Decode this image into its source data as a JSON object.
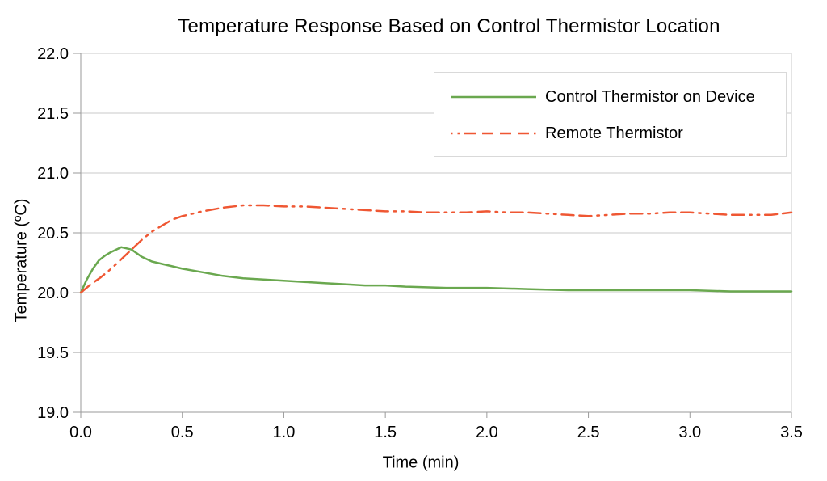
{
  "chart_data": {
    "type": "line",
    "title": "Temperature Response Based on Control Thermistor Location",
    "xlabel": "Time (min)",
    "ylabel": "Temperature (ºC)",
    "xlim": [
      0,
      3.5
    ],
    "ylim": [
      19.0,
      22.0
    ],
    "x_ticks": [
      "0.0",
      "0.5",
      "1.0",
      "1.5",
      "2.0",
      "2.5",
      "3.0",
      "3.5"
    ],
    "y_ticks": [
      "19.0",
      "19.5",
      "20.0",
      "20.5",
      "21.0",
      "21.5",
      "22.0"
    ],
    "grid": "horizontal-only",
    "legend_position": "top-right-inside",
    "colors": {
      "grid": "#c9c9c9",
      "axis": "#9a9a9a",
      "text": "#000000",
      "legend_border": "#d9d9d9",
      "background": "#ffffff"
    },
    "series": [
      {
        "name": "Control Thermistor on Device",
        "color": "#6aa84f",
        "line_style": "solid",
        "points": [
          [
            0.0,
            20.0
          ],
          [
            0.03,
            20.11
          ],
          [
            0.06,
            20.2
          ],
          [
            0.09,
            20.27
          ],
          [
            0.12,
            20.31
          ],
          [
            0.15,
            20.34
          ],
          [
            0.2,
            20.38
          ],
          [
            0.25,
            20.36
          ],
          [
            0.3,
            20.3
          ],
          [
            0.35,
            20.26
          ],
          [
            0.4,
            20.24
          ],
          [
            0.45,
            20.22
          ],
          [
            0.5,
            20.2
          ],
          [
            0.6,
            20.17
          ],
          [
            0.7,
            20.14
          ],
          [
            0.8,
            20.12
          ],
          [
            0.9,
            20.11
          ],
          [
            1.0,
            20.1
          ],
          [
            1.1,
            20.09
          ],
          [
            1.2,
            20.08
          ],
          [
            1.3,
            20.07
          ],
          [
            1.4,
            20.06
          ],
          [
            1.5,
            20.06
          ],
          [
            1.6,
            20.05
          ],
          [
            1.8,
            20.04
          ],
          [
            2.0,
            20.04
          ],
          [
            2.2,
            20.03
          ],
          [
            2.4,
            20.02
          ],
          [
            2.6,
            20.02
          ],
          [
            2.8,
            20.02
          ],
          [
            3.0,
            20.02
          ],
          [
            3.2,
            20.01
          ],
          [
            3.5,
            20.01
          ]
        ]
      },
      {
        "name": "Remote Thermistor",
        "color": "#ef5733",
        "line_style": "dash-dash-dot-dot",
        "points": [
          [
            0.0,
            20.0
          ],
          [
            0.05,
            20.07
          ],
          [
            0.1,
            20.13
          ],
          [
            0.15,
            20.2
          ],
          [
            0.2,
            20.28
          ],
          [
            0.25,
            20.36
          ],
          [
            0.3,
            20.44
          ],
          [
            0.35,
            20.51
          ],
          [
            0.4,
            20.56
          ],
          [
            0.45,
            20.61
          ],
          [
            0.5,
            20.64
          ],
          [
            0.6,
            20.68
          ],
          [
            0.7,
            20.71
          ],
          [
            0.8,
            20.73
          ],
          [
            0.9,
            20.73
          ],
          [
            1.0,
            20.72
          ],
          [
            1.1,
            20.72
          ],
          [
            1.2,
            20.71
          ],
          [
            1.3,
            20.7
          ],
          [
            1.4,
            20.69
          ],
          [
            1.5,
            20.68
          ],
          [
            1.6,
            20.68
          ],
          [
            1.7,
            20.67
          ],
          [
            1.8,
            20.67
          ],
          [
            1.9,
            20.67
          ],
          [
            2.0,
            20.68
          ],
          [
            2.1,
            20.67
          ],
          [
            2.2,
            20.67
          ],
          [
            2.3,
            20.66
          ],
          [
            2.4,
            20.65
          ],
          [
            2.5,
            20.64
          ],
          [
            2.6,
            20.65
          ],
          [
            2.7,
            20.66
          ],
          [
            2.8,
            20.66
          ],
          [
            2.9,
            20.67
          ],
          [
            3.0,
            20.67
          ],
          [
            3.1,
            20.66
          ],
          [
            3.2,
            20.65
          ],
          [
            3.3,
            20.65
          ],
          [
            3.4,
            20.65
          ],
          [
            3.5,
            20.67
          ]
        ]
      }
    ]
  }
}
